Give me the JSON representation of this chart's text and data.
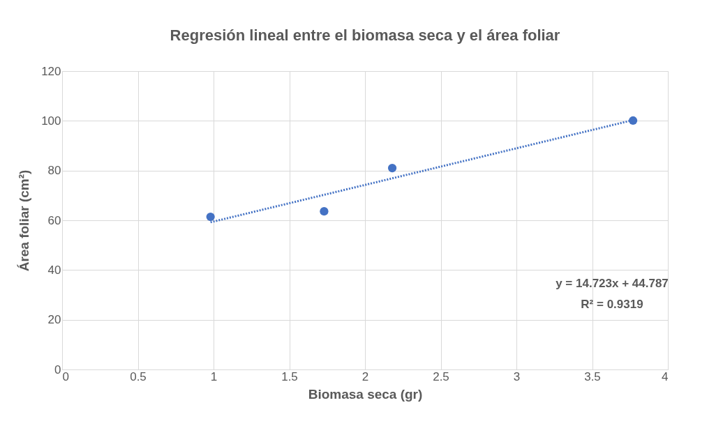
{
  "chart_data": {
    "type": "scatter",
    "title": "Regresión lineal entre el biomasa seca y el área foliar",
    "xlabel": "Biomasa seca (gr)",
    "ylabel": "Área foliar (cm²)",
    "x": [
      0.98,
      1.73,
      2.18,
      3.77
    ],
    "series": [
      {
        "color": "#4472c4",
        "values": [
          61.4,
          63.6,
          81.0,
          100.1
        ],
        "marker": "circle"
      },
      {
        "type": "line",
        "color": "#4472c4",
        "x": [
          0.98,
          3.77
        ],
        "values": [
          59.2,
          100.3
        ],
        "line_style": "dotted",
        "marker": "none"
      }
    ],
    "xlim": [
      0,
      4
    ],
    "xticks": [
      0,
      0.5,
      1,
      1.5,
      2,
      2.5,
      3,
      3.5,
      4
    ],
    "ylim": [
      0,
      120
    ],
    "yticks": [
      0,
      20,
      40,
      60,
      80,
      100,
      120
    ],
    "grid": true,
    "annotations": [
      "y = 14.723x + 44.787",
      "R² = 0.9319"
    ]
  }
}
